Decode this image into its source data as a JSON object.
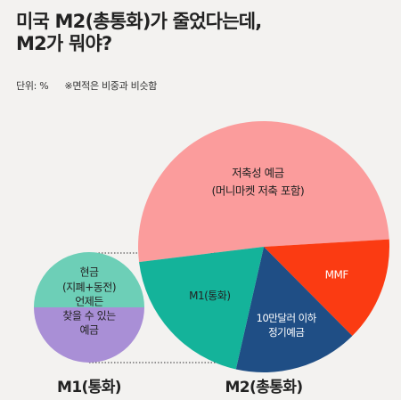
{
  "header": {
    "title_line1": "미국 M2(총통화)가 줄었다는데,",
    "title_line2": "M2가 뭐야?"
  },
  "meta": {
    "unit": "단위: %",
    "note": "※면적은 비중과 비슷함"
  },
  "chart_data": [
    {
      "type": "pie",
      "title": "M1(통화)",
      "slices": [
        {
          "label_lines": [
            "현금",
            "(지폐+동전)"
          ],
          "value": 50,
          "color": "#6dcfb7"
        },
        {
          "label_lines": [
            "언제든",
            "찾을 수 있는",
            "예금"
          ],
          "value": 50,
          "color": "#a98fd6"
        }
      ]
    },
    {
      "type": "pie",
      "title": "M2(총통화)",
      "slices": [
        {
          "label_lines": [
            "저축성 예금",
            "(머니마켓 저축 포함)"
          ],
          "value": 51,
          "color": "#fb9c9c",
          "label_color": "#222"
        },
        {
          "label_lines": [
            "MMF"
          ],
          "value": 13.5,
          "color": "#fb3b12",
          "label_color": "#fff"
        },
        {
          "label_lines": [
            "10만달러 이하",
            "정기예금"
          ],
          "value": 16,
          "color": "#1f4e85",
          "label_color": "#fff"
        },
        {
          "label_lines": [
            "M1(통화)"
          ],
          "value": 19.5,
          "color": "#14b39a",
          "label_color": "#222"
        }
      ]
    }
  ]
}
